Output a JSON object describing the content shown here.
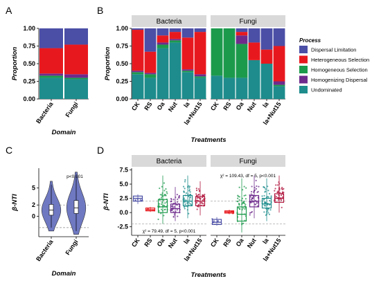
{
  "panels": {
    "A": "A",
    "B": "B",
    "C": "C",
    "D": "D"
  },
  "colors": {
    "Dispersal Limitation": "#4b4fa6",
    "Heterogeneous Selection": "#e8191e",
    "Homogeneous Selection": "#1c9a4c",
    "Homogenizing Dispersal": "#6e2b8c",
    "Undominated": "#1e8c8c",
    "strip": "#d9d9d9",
    "violin": "#6f79c2",
    "box_colors": [
      "#4b4fa6",
      "#e8191e",
      "#1c9a4c",
      "#6e2b8c",
      "#1e8c8c",
      "#b0143c"
    ]
  },
  "legend": {
    "title": "Process",
    "items": [
      "Dispersal Limitation",
      "Heterogeneous Selection",
      "Homogeneous Selection",
      "Homogenizing Dispersal",
      "Undominated"
    ]
  },
  "chart_data": [
    {
      "panel": "A",
      "type": "bar",
      "stacked": true,
      "categories": [
        "Bacteria",
        "Fungi"
      ],
      "ylabel": "Proportion",
      "xlabel": "Domain",
      "ylim": [
        0,
        1
      ],
      "yticks": [
        "0.00",
        "0.25",
        "0.50",
        "0.75",
        "1.00"
      ],
      "series": [
        {
          "name": "Undominated",
          "values": [
            0.3,
            0.28
          ]
        },
        {
          "name": "Homogeneous Selection",
          "values": [
            0.03,
            0.02
          ]
        },
        {
          "name": "Homogenizing Dispersal",
          "values": [
            0.03,
            0.05
          ]
        },
        {
          "name": "Heterogeneous Selection",
          "values": [
            0.36,
            0.42
          ]
        },
        {
          "name": "Dispersal Limitation",
          "values": [
            0.28,
            0.23
          ]
        }
      ]
    },
    {
      "panel": "B",
      "type": "bar",
      "stacked": true,
      "facets": [
        "Bacteria",
        "Fungi"
      ],
      "categories": [
        "CK",
        "RS",
        "Oa",
        "Nut",
        "la",
        "la+Nut15"
      ],
      "ylabel": "Proportion",
      "xlabel": "Treatments",
      "ylim": [
        0,
        1
      ],
      "yticks": [
        "0.00",
        "0.25",
        "0.50",
        "0.75",
        "1.00"
      ],
      "series_order": [
        "Undominated",
        "Homogeneous Selection",
        "Homogenizing Dispersal",
        "Heterogeneous Selection",
        "Dispersal Limitation"
      ],
      "data": {
        "Bacteria": {
          "Undominated": [
            0.35,
            0.3,
            0.72,
            0.8,
            0.38,
            0.3
          ],
          "Homogeneous Selection": [
            0.03,
            0.05,
            0.05,
            0.03,
            0.02,
            0.02
          ],
          "Homogenizing Dispersal": [
            0.02,
            0.02,
            0.03,
            0.02,
            0.02,
            0.03
          ],
          "Heterogeneous Selection": [
            0.58,
            0.3,
            0.1,
            0.1,
            0.45,
            0.6
          ],
          "Dispersal Limitation": [
            0.02,
            0.33,
            0.1,
            0.05,
            0.13,
            0.05
          ]
        },
        "Fungi": {
          "Undominated": [
            0.33,
            0.3,
            0.3,
            0.55,
            0.5,
            0.18
          ],
          "Homogeneous Selection": [
            0.67,
            0.7,
            0.48,
            0.0,
            0.0,
            0.02
          ],
          "Homogenizing Dispersal": [
            0.0,
            0.0,
            0.12,
            0.0,
            0.0,
            0.05
          ],
          "Heterogeneous Selection": [
            0.0,
            0.0,
            0.05,
            0.25,
            0.2,
            0.5
          ],
          "Dispersal Limitation": [
            0.0,
            0.0,
            0.05,
            0.2,
            0.3,
            0.25
          ]
        }
      }
    },
    {
      "panel": "C",
      "type": "violin",
      "categories": [
        "Bacteria",
        "Fungi"
      ],
      "ylabel": "β-NTI",
      "xlabel": "Domain",
      "ylim": [
        -3.6,
        8.5
      ],
      "yticks": [
        0,
        2,
        5
      ],
      "ytick_labels": [
        "0",
        "2",
        "5"
      ],
      "hlines": [
        2,
        -2
      ],
      "annotation": "p<0.001",
      "medians": [
        1.1,
        1.5
      ],
      "q1": [
        0.2,
        0.5
      ],
      "q3": [
        2.1,
        2.8
      ],
      "min": [
        -2.6,
        -3.2
      ],
      "max": [
        6.2,
        7.8
      ]
    },
    {
      "panel": "D",
      "type": "box",
      "facets": [
        "Bacteria",
        "Fungi"
      ],
      "categories": [
        "CK",
        "RS",
        "Oa",
        "Nut",
        "la",
        "la+Nut15"
      ],
      "ylabel": "β-NTI",
      "xlabel": "Treatments",
      "ylim": [
        -4,
        7.8
      ],
      "yticks": [
        -2.5,
        0.0,
        2.5,
        5.0,
        7.5
      ],
      "ytick_labels": [
        "-2.5",
        "0.0",
        "2.5",
        "5.0",
        "7.5"
      ],
      "hlines": [
        2,
        -2
      ],
      "annotations": {
        "Bacteria": "χ² = 79.49, df = 5, p<0.001",
        "Fungi": "χ² = 109.43, df = 5, p<0.001"
      },
      "data": {
        "Bacteria": {
          "median": [
            2.5,
            0.5,
            1.0,
            0.7,
            2.0,
            2.0
          ],
          "q1": [
            2.0,
            0.3,
            0.0,
            0.0,
            1.2,
            1.2
          ],
          "q3": [
            2.9,
            0.8,
            2.3,
            1.5,
            3.0,
            2.8
          ],
          "min": [
            1.5,
            0.1,
            -2.0,
            -1.5,
            -1.0,
            -0.5
          ],
          "max": [
            3.2,
            1.0,
            6.5,
            4.5,
            6.5,
            5.5
          ]
        },
        "Fungi": {
          "median": [
            -1.7,
            0.1,
            -0.3,
            2.0,
            1.5,
            2.5
          ],
          "q1": [
            -2.1,
            -0.1,
            -1.5,
            1.0,
            0.8,
            1.8
          ],
          "q3": [
            -1.2,
            0.3,
            1.0,
            3.0,
            2.5,
            3.3
          ],
          "min": [
            -2.3,
            -0.3,
            -3.5,
            -1.0,
            -1.5,
            0.0
          ],
          "max": [
            -0.8,
            0.5,
            6.0,
            6.5,
            6.0,
            6.5
          ]
        }
      }
    }
  ]
}
